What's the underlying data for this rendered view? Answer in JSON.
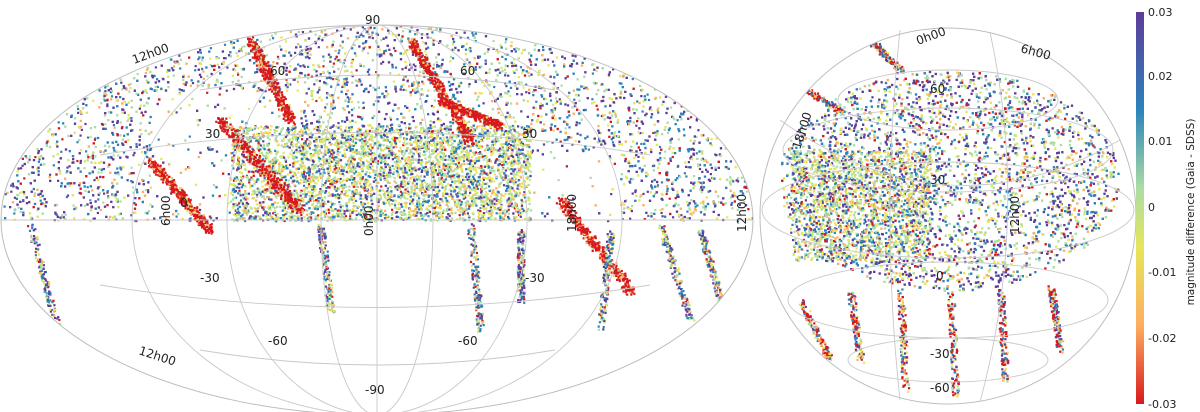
{
  "colorbar": {
    "title": "magnitude difference (Gaia - SDSS)",
    "ticks": [
      "0.03",
      "0.02",
      "0.01",
      "0",
      "-0.01",
      "-0.02",
      "-0.03"
    ],
    "min": -0.03,
    "max": 0.03,
    "colors": [
      "#d7191c",
      "#fdae61",
      "#e6e65a",
      "#abdda4",
      "#2b83ba",
      "#5e3c99"
    ]
  },
  "left_map": {
    "projection": "aitoff",
    "lat_labels": [
      "90",
      "60",
      "60",
      "30",
      "30",
      "0",
      "-30",
      "-30",
      "-60",
      "-60",
      "-90"
    ],
    "ra_labels": [
      "12h00",
      "6h00",
      "0h00",
      "18h00",
      "12h00",
      "12h00"
    ]
  },
  "right_map": {
    "projection": "orthographic",
    "lat_labels": [
      "60",
      "30",
      "0",
      "-30",
      "-60"
    ],
    "ra_labels": [
      "0h00",
      "6h00",
      "18h00",
      "12h00"
    ]
  }
}
